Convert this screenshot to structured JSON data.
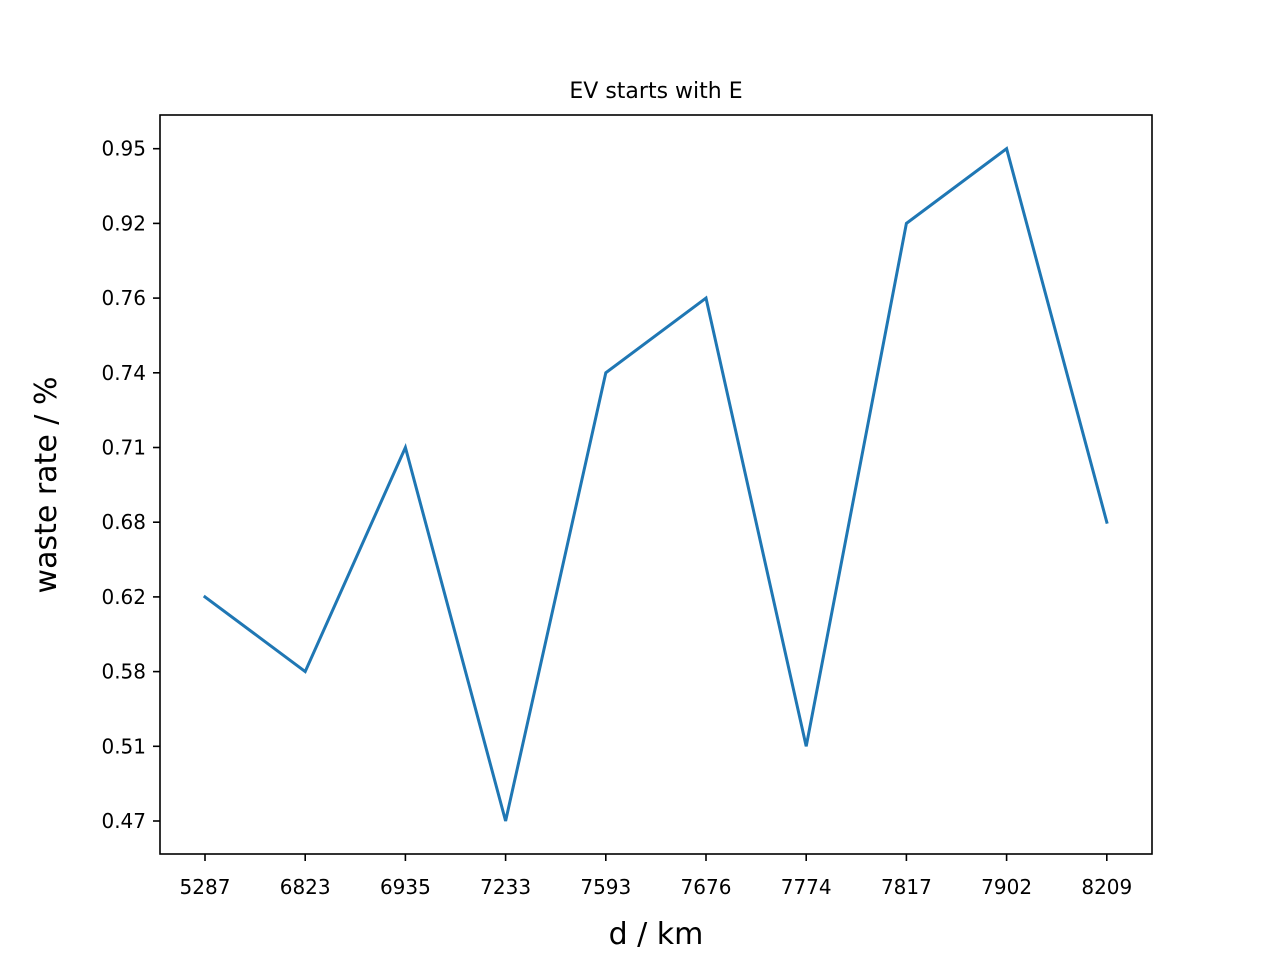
{
  "chart_data": {
    "type": "line",
    "title": "EV starts with E",
    "xlabel": "d / km",
    "ylabel": "waste rate / %",
    "categories": [
      "5287",
      "6823",
      "6935",
      "7233",
      "7593",
      "7676",
      "7774",
      "7817",
      "7902",
      "8209"
    ],
    "y_tick_labels": [
      "0.47",
      "0.51",
      "0.58",
      "0.62",
      "0.68",
      "0.71",
      "0.74",
      "0.76",
      "0.92",
      "0.95"
    ],
    "values": [
      0.62,
      0.58,
      0.71,
      0.47,
      0.74,
      0.76,
      0.51,
      0.92,
      0.95,
      0.68
    ],
    "grid": false,
    "legend": false,
    "line_color": "#1f77b4"
  }
}
